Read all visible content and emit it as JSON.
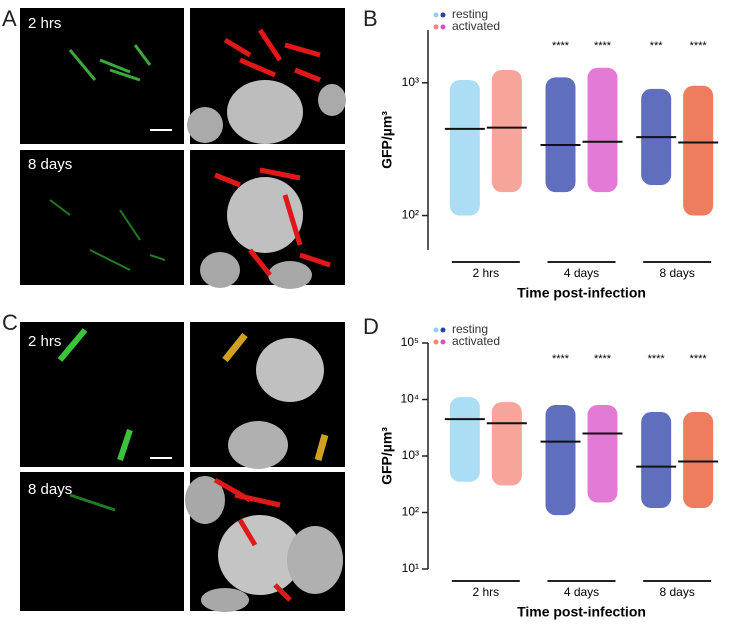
{
  "figure": {
    "panels": [
      {
        "label": "A",
        "captions": [
          "2 hrs",
          "8 days"
        ]
      },
      {
        "label": "B"
      },
      {
        "label": "C",
        "captions": [
          "2 hrs",
          "8 days"
        ]
      },
      {
        "label": "D"
      }
    ]
  },
  "chart_data": [
    {
      "type": "dot",
      "ylabel": "GFP/µm³",
      "xlabel": "Time post-infection",
      "categories": [
        "2 hrs",
        "4 days",
        "8 days"
      ],
      "log_y": true,
      "ylim": [
        55,
        2500
      ],
      "yticks": [
        {
          "value": 100,
          "label": "10²"
        },
        {
          "value": 1000,
          "label": "10³"
        }
      ],
      "series": [
        {
          "name": "resting",
          "colors": [
            "#8fd3f0",
            "#2a3fa8",
            "#2a3fa8"
          ],
          "values": [
            450,
            340,
            390
          ],
          "min": [
            100,
            150,
            170
          ],
          "max": [
            1050,
            1100,
            900
          ],
          "annotations": [
            null,
            "****",
            "***"
          ]
        },
        {
          "name": "activated",
          "colors": [
            "#f4867a",
            "#d94fc8",
            "#e8502a"
          ],
          "values": [
            460,
            360,
            355
          ],
          "min": [
            150,
            150,
            100
          ],
          "max": [
            1250,
            1300,
            950
          ],
          "annotations": [
            null,
            "****",
            "****"
          ]
        }
      ]
    },
    {
      "type": "dot",
      "ylabel": "GFP/µm³",
      "xlabel": "Time post-infection",
      "categories": [
        "2 hrs",
        "4 days",
        "8 days"
      ],
      "log_y": true,
      "ylim": [
        10,
        100000
      ],
      "yticks": [
        {
          "value": 10,
          "label": "10¹"
        },
        {
          "value": 100,
          "label": "10²"
        },
        {
          "value": 1000,
          "label": "10³"
        },
        {
          "value": 10000,
          "label": "10⁴"
        },
        {
          "value": 100000,
          "label": "10⁵"
        }
      ],
      "series": [
        {
          "name": "resting",
          "colors": [
            "#8fd3f0",
            "#2a3fa8",
            "#2a3fa8"
          ],
          "values": [
            4500,
            1800,
            650
          ],
          "min": [
            350,
            90,
            120
          ],
          "max": [
            11000,
            8000,
            6000
          ],
          "annotations": [
            null,
            "****",
            "****"
          ]
        },
        {
          "name": "activated",
          "colors": [
            "#f4867a",
            "#d94fc8",
            "#e8502a"
          ],
          "values": [
            3800,
            2500,
            800
          ],
          "min": [
            300,
            150,
            120
          ],
          "max": [
            9000,
            8000,
            6000
          ],
          "annotations": [
            null,
            "****",
            "****"
          ]
        }
      ]
    }
  ]
}
